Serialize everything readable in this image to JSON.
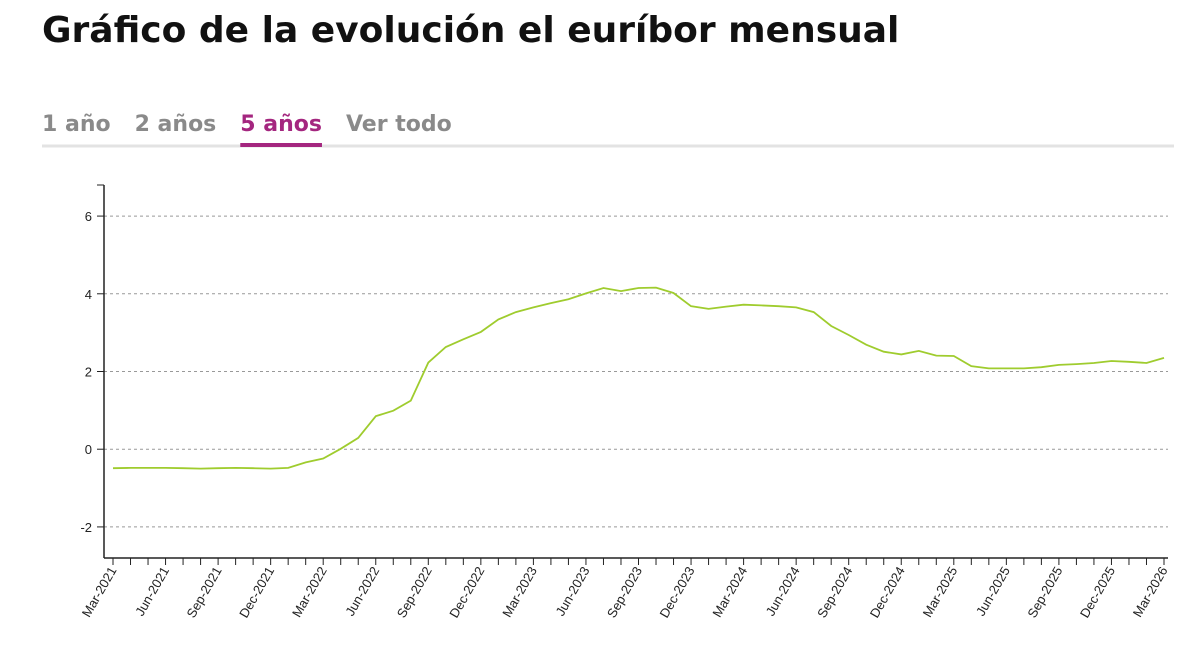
{
  "tabs": {
    "items": [
      "1 año",
      "2 años",
      "5 años",
      "Ver todo"
    ],
    "selected": 2
  },
  "chart_data": {
    "type": "line",
    "title": "Gráfico de la evolución el euríbor mensual",
    "categories": [
      "Mar-2021",
      null,
      null,
      "Jun-2021",
      null,
      null,
      "Sep-2021",
      null,
      null,
      "Dec-2021",
      null,
      null,
      "Mar-2022",
      null,
      null,
      "Jun-2022",
      null,
      null,
      "Sep-2022",
      null,
      null,
      "Dec-2022",
      null,
      null,
      "Mar-2023",
      null,
      null,
      "Jun-2023",
      null,
      null,
      "Sep-2023",
      null,
      null,
      "Dec-2023",
      null,
      null,
      "Mar-2024",
      null,
      null,
      "Jun-2024",
      null,
      null,
      "Sep-2024",
      null,
      null,
      "Dec-2024",
      null,
      null,
      "Mar-2025",
      null,
      null,
      "Jun-2025",
      null,
      null,
      "Sep-2025",
      null,
      null,
      "Dec-2025",
      null,
      null,
      "Mar-2026"
    ],
    "series": [
      {
        "color": "#9fcc2e",
        "values": [
          -0.49,
          -0.48,
          -0.48,
          -0.48,
          -0.49,
          -0.5,
          -0.49,
          -0.48,
          -0.49,
          -0.5,
          -0.48,
          -0.34,
          -0.24,
          0.01,
          0.29,
          0.85,
          0.99,
          1.25,
          2.23,
          2.63,
          2.83,
          3.02,
          3.34,
          3.53,
          3.65,
          3.76,
          3.86,
          4.01,
          4.15,
          4.07,
          4.15,
          4.16,
          4.02,
          3.68,
          3.61,
          3.67,
          3.72,
          3.7,
          3.68,
          3.65,
          3.53,
          3.17,
          2.94,
          2.69,
          2.51,
          2.44,
          2.53,
          2.41,
          2.4,
          2.14,
          2.08,
          2.08,
          2.08,
          2.11,
          2.17,
          2.19,
          2.22,
          2.27,
          2.25,
          2.22,
          2.35
        ]
      }
    ],
    "ylim": [
      -2.8,
      6.8
    ],
    "yticks": [
      -2,
      0,
      2,
      4,
      6
    ],
    "grid": true
  }
}
